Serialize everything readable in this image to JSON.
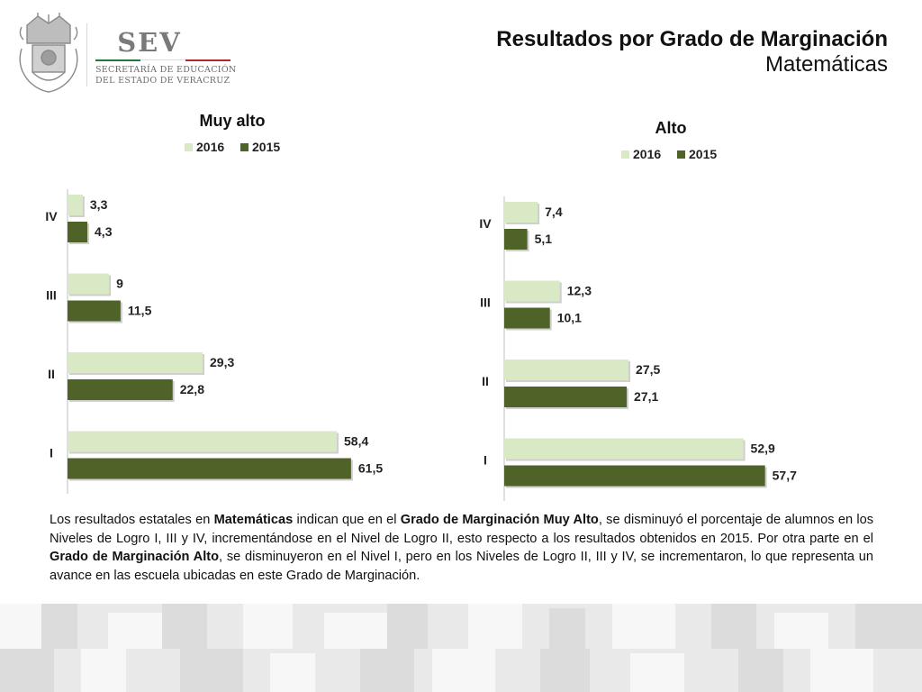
{
  "header": {
    "logo_word": "SEV",
    "logo_line1": "SECRETARÍA DE EDUCACIÓN",
    "logo_line2": "DEL ESTADO DE VERACRUZ",
    "title": "Resultados por Grado de Marginación",
    "subtitle": "Matemáticas"
  },
  "colors": {
    "series_2016": "#d9e8c5",
    "series_2015": "#4f6228",
    "flag_green": "#1f7a3a",
    "flag_white": "#ffffff",
    "flag_red": "#b3282d"
  },
  "chart_data": [
    {
      "type": "bar",
      "orientation": "horizontal",
      "title": "Muy alto",
      "categories": [
        "IV",
        "III",
        "II",
        "I"
      ],
      "series": [
        {
          "name": "2016",
          "values": [
            3.3,
            9,
            29.3,
            58.4
          ],
          "labels": [
            "3,3",
            "9",
            "29,3",
            "58,4"
          ]
        },
        {
          "name": "2015",
          "values": [
            4.3,
            11.5,
            22.8,
            61.5
          ],
          "labels": [
            "4,3",
            "11,5",
            "22,8",
            "61,5"
          ]
        }
      ],
      "legend": "top",
      "grid": false
    },
    {
      "type": "bar",
      "orientation": "horizontal",
      "title": "Alto",
      "categories": [
        "IV",
        "III",
        "II",
        "I"
      ],
      "series": [
        {
          "name": "2016",
          "values": [
            7.4,
            12.3,
            27.5,
            52.9
          ],
          "labels": [
            "7,4",
            "12,3",
            "27,5",
            "52,9"
          ]
        },
        {
          "name": "2015",
          "values": [
            5.1,
            10.1,
            27.1,
            57.7
          ],
          "labels": [
            "5,1",
            "10,1",
            "27,1",
            "57,7"
          ]
        }
      ],
      "legend": "top",
      "grid": false
    }
  ],
  "paragraph": [
    {
      "t": "Los resultados estatales en ",
      "b": false
    },
    {
      "t": "Matemáticas",
      "b": true
    },
    {
      "t": " indican que en el ",
      "b": false
    },
    {
      "t": "Grado de Marginación Muy Alto",
      "b": true
    },
    {
      "t": ", se disminuyó el porcentaje de alumnos en los Niveles de Logro I, III y IV, incrementándose en el Nivel de Logro II, esto respecto a los resultados obtenidos en 2015. Por otra parte en el ",
      "b": false
    },
    {
      "t": "Grado de Marginación Alto",
      "b": true
    },
    {
      "t": ", se disminuyeron en el Nivel I, pero en los Niveles de Logro II, III y IV, se incrementaron, lo que representa un avance en las escuela ubicadas en este Grado de Marginación.",
      "b": false
    }
  ]
}
